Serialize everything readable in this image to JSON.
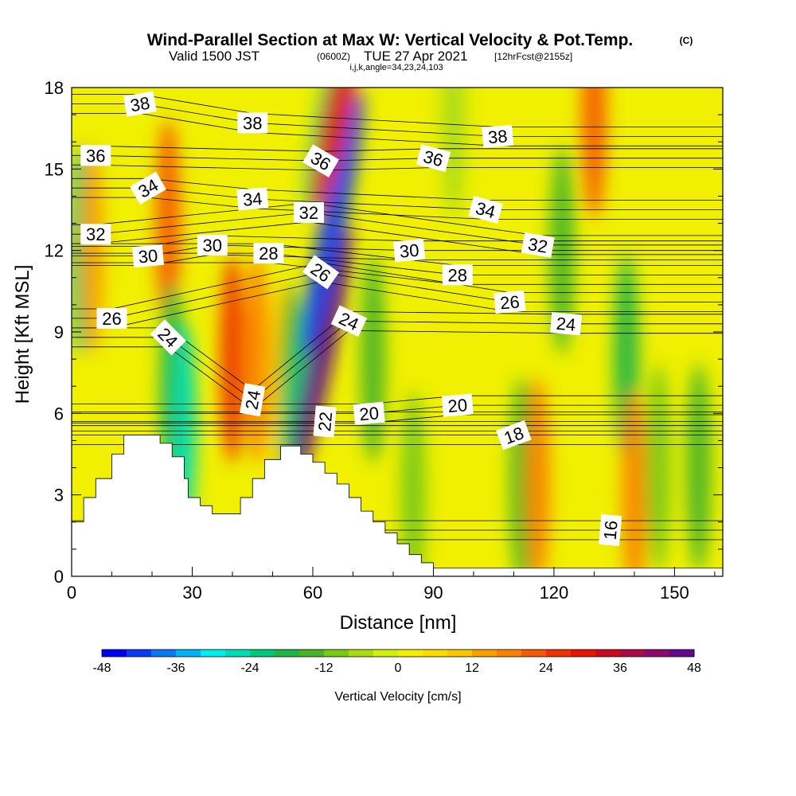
{
  "title": {
    "main": "Wind-Parallel Section at Max W: Vertical Velocity & Pot.Temp.",
    "copyright": "(C)",
    "valid": "Valid 1500 JST",
    "utc": "(0600Z)",
    "date": "TUE 27 Apr 2021",
    "forecast": "[12hrFcst@2155z]",
    "indices": "i,j,k,angle=34,23,24,103"
  },
  "chart_data": {
    "type": "heatmap",
    "xlabel": "Distance [nm]",
    "ylabel": "Height [Kft MSL]",
    "xlim": [
      0,
      162
    ],
    "ylim": [
      0,
      18
    ],
    "x_ticks": [
      "0",
      "30",
      "60",
      "90",
      "120",
      "150"
    ],
    "y_ticks": [
      "0",
      "3",
      "6",
      "9",
      "12",
      "15",
      "18"
    ],
    "grid": false,
    "terrain_top_kft": [
      [
        0,
        2.0
      ],
      [
        3,
        2.0
      ],
      [
        3,
        2.9
      ],
      [
        6,
        2.9
      ],
      [
        6,
        3.6
      ],
      [
        10,
        3.6
      ],
      [
        10,
        4.5
      ],
      [
        13,
        4.5
      ],
      [
        13,
        5.2
      ],
      [
        22,
        5.2
      ],
      [
        22,
        4.9
      ],
      [
        25,
        4.9
      ],
      [
        25,
        4.4
      ],
      [
        28,
        4.4
      ],
      [
        28,
        3.6
      ],
      [
        29,
        3.6
      ],
      [
        29,
        2.9
      ],
      [
        32,
        2.9
      ],
      [
        32,
        2.6
      ],
      [
        35,
        2.6
      ],
      [
        35,
        2.3
      ],
      [
        42,
        2.3
      ],
      [
        42,
        2.9
      ],
      [
        45,
        2.9
      ],
      [
        45,
        3.6
      ],
      [
        48,
        3.6
      ],
      [
        48,
        4.3
      ],
      [
        52,
        4.3
      ],
      [
        52,
        4.8
      ],
      [
        57,
        4.8
      ],
      [
        57,
        4.5
      ],
      [
        60,
        4.5
      ],
      [
        60,
        4.2
      ],
      [
        63,
        4.2
      ],
      [
        63,
        3.8
      ],
      [
        66,
        3.8
      ],
      [
        66,
        3.4
      ],
      [
        69,
        3.4
      ],
      [
        69,
        2.9
      ],
      [
        72,
        2.9
      ],
      [
        72,
        2.4
      ],
      [
        75,
        2.4
      ],
      [
        75,
        2.0
      ],
      [
        78,
        2.0
      ],
      [
        78,
        1.6
      ],
      [
        81,
        1.6
      ],
      [
        81,
        1.2
      ],
      [
        84,
        1.2
      ],
      [
        84,
        0.8
      ],
      [
        87,
        0.8
      ],
      [
        87,
        0.5
      ],
      [
        90,
        0.5
      ],
      [
        90,
        0.3
      ],
      [
        162,
        0.3
      ]
    ],
    "colorbar": {
      "label": "Vertical Velocity [cm/s]",
      "tick_labels": [
        "-48",
        "-36",
        "-24",
        "-12",
        "0",
        "12",
        "24",
        "36",
        "48"
      ],
      "min": -48,
      "max": 48,
      "step": 4,
      "colors": [
        "#0000f0",
        "#0a3cf5",
        "#0a78f5",
        "#00b4f5",
        "#00f0f0",
        "#00dcb4",
        "#00c878",
        "#1eb446",
        "#46b428",
        "#78c814",
        "#aadc14",
        "#d2f00a",
        "#f0f000",
        "#fadc00",
        "#fac800",
        "#faa000",
        "#fa8200",
        "#f55a00",
        "#f03200",
        "#e61400",
        "#c80a1e",
        "#aa0a46",
        "#8c0a6e",
        "#64088c"
      ]
    },
    "w_features": [
      {
        "x": 2,
        "z": 12,
        "value": -24
      },
      {
        "x": 5,
        "z": 12,
        "value": 12
      },
      {
        "x": 24,
        "z": 13,
        "value": 22
      },
      {
        "x": 25,
        "z": 7,
        "value": -20
      },
      {
        "x": 28,
        "z": 5.5,
        "value": -28
      },
      {
        "x": 40,
        "z": 8,
        "value": 26
      },
      {
        "x": 46,
        "z": 8,
        "value": 18
      },
      {
        "x": 52,
        "z": 7,
        "value": 10
      },
      {
        "x": 55,
        "z": 7,
        "value": -16
      },
      {
        "x": 58,
        "z": 8,
        "value": -24
      },
      {
        "x": 62,
        "z": 8,
        "value": 48
      },
      {
        "x": 65,
        "z": 13,
        "value": -44
      },
      {
        "x": 64,
        "z": 17,
        "value": -22
      },
      {
        "x": 66,
        "z": 17,
        "value": 30
      },
      {
        "x": 75,
        "z": 8,
        "value": -16
      },
      {
        "x": 85,
        "z": 3,
        "value": -10
      },
      {
        "x": 112,
        "z": 3.5,
        "value": -14
      },
      {
        "x": 116,
        "z": 3.5,
        "value": 16
      },
      {
        "x": 122,
        "z": 12,
        "value": -14
      },
      {
        "x": 138,
        "z": 8,
        "value": -18
      },
      {
        "x": 140,
        "z": 3,
        "value": 16
      },
      {
        "x": 146,
        "z": 4,
        "value": -10
      },
      {
        "x": 156,
        "z": 4,
        "value": -14
      },
      {
        "x": 130,
        "z": 17,
        "value": 20
      },
      {
        "x": 95,
        "z": 17,
        "value": -6
      }
    ],
    "theta_contours": {
      "levels_labeled": [
        {
          "label": "38",
          "x": 17,
          "z": 17.4,
          "angle": -10
        },
        {
          "label": "38",
          "x": 45,
          "z": 16.7,
          "angle": 0
        },
        {
          "label": "38",
          "x": 106,
          "z": 16.2,
          "angle": -5
        },
        {
          "label": "36",
          "x": 6,
          "z": 15.5,
          "angle": 0
        },
        {
          "label": "36",
          "x": 62,
          "z": 15.3,
          "angle": 30
        },
        {
          "label": "36",
          "x": 90,
          "z": 15.4,
          "angle": 15
        },
        {
          "label": "34",
          "x": 19,
          "z": 14.3,
          "angle": -30
        },
        {
          "label": "34",
          "x": 45,
          "z": 13.9,
          "angle": -5
        },
        {
          "label": "34",
          "x": 103,
          "z": 13.5,
          "angle": 15
        },
        {
          "label": "32",
          "x": 6,
          "z": 12.6,
          "angle": 0
        },
        {
          "label": "32",
          "x": 59,
          "z": 13.4,
          "angle": 0
        },
        {
          "label": "32",
          "x": 116,
          "z": 12.2,
          "angle": 10
        },
        {
          "label": "30",
          "x": 19,
          "z": 11.8,
          "angle": -5
        },
        {
          "label": "30",
          "x": 35,
          "z": 12.2,
          "angle": 0
        },
        {
          "label": "30",
          "x": 84,
          "z": 12.0,
          "angle": -5
        },
        {
          "label": "28",
          "x": 49,
          "z": 11.9,
          "angle": 0
        },
        {
          "label": "28",
          "x": 96,
          "z": 11.1,
          "angle": 0
        },
        {
          "label": "26",
          "x": 10,
          "z": 9.5,
          "angle": 0
        },
        {
          "label": "26",
          "x": 62,
          "z": 11.2,
          "angle": 35
        },
        {
          "label": "26",
          "x": 109,
          "z": 10.1,
          "angle": -5
        },
        {
          "label": "24",
          "x": 24,
          "z": 8.8,
          "angle": 45
        },
        {
          "label": "24",
          "x": 45,
          "z": 6.5,
          "angle": -80
        },
        {
          "label": "24",
          "x": 69,
          "z": 9.4,
          "angle": 25
        },
        {
          "label": "24",
          "x": 123,
          "z": 9.3,
          "angle": 5
        },
        {
          "label": "22",
          "x": 63,
          "z": 5.7,
          "angle": -85
        },
        {
          "label": "20",
          "x": 74,
          "z": 6.0,
          "angle": -5
        },
        {
          "label": "20",
          "x": 96,
          "z": 6.3,
          "angle": -5
        },
        {
          "label": "18",
          "x": 110,
          "z": 5.2,
          "angle": -20
        },
        {
          "label": "16",
          "x": 134,
          "z": 1.7,
          "angle": -85
        }
      ]
    }
  }
}
